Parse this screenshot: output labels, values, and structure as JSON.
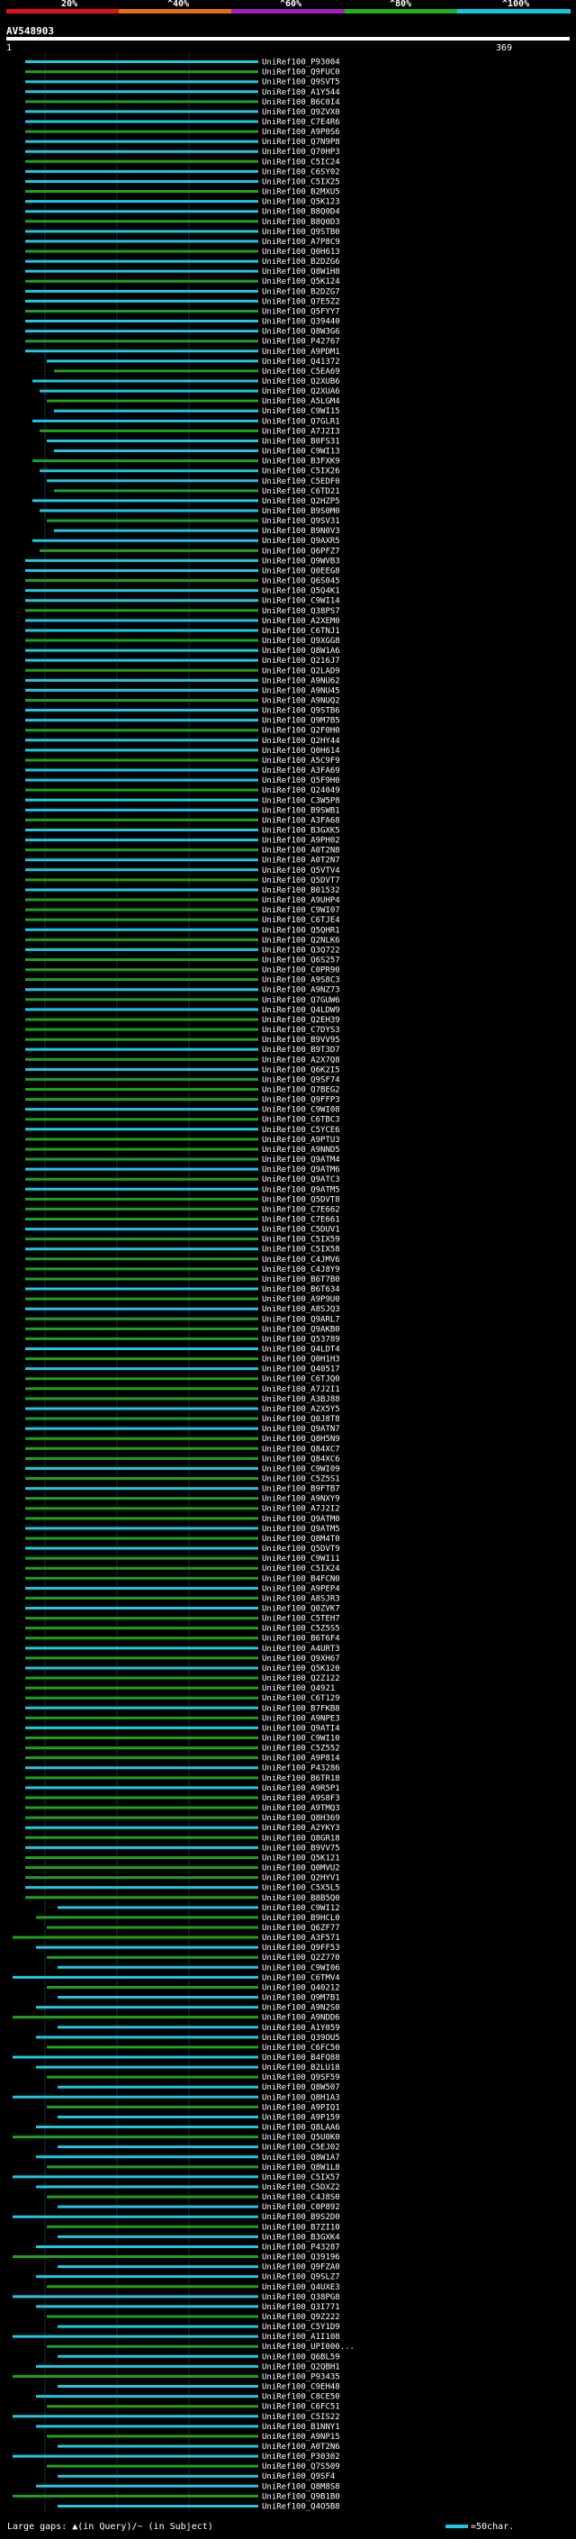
{
  "header": {
    "percent_labels": [
      "20%",
      "^40%",
      "^60%",
      "^80%",
      "^100%"
    ],
    "identity_colors": [
      "#e01010",
      "#e07010",
      "#a020c0",
      "#20b020",
      "#10c8e0"
    ],
    "query_name": "AV548903",
    "axis_start": "1",
    "axis_end": "369"
  },
  "chart_data": {
    "type": "alignment-hits",
    "query_length": 369,
    "hits": [
      "UniRef100_P93004",
      "UniRef100_Q9FUC0",
      "UniRef100_Q9SVT5",
      "UniRef100_A1Y544",
      "UniRef100_B6C0I4",
      "UniRef100_Q9ZVX0",
      "UniRef100_C7E4R6",
      "UniRef100_A9P0S6",
      "UniRef100_Q7N9P8",
      "UniRef100_Q70HP3",
      "UniRef100_C5IC24",
      "UniRef100_C6SY02",
      "UniRef100_C5IX25",
      "UniRef100_B2MXU5",
      "UniRef100_Q5K123",
      "UniRef100_B8Q0D4",
      "UniRef100_B8Q0D3",
      "UniRef100_Q9STB0",
      "UniRef100_A7P8C9",
      "UniRef100_Q0H613",
      "UniRef100_B2DZG6",
      "UniRef100_Q8W1H8",
      "UniRef100_Q5K124",
      "UniRef100_B2DZG7",
      "UniRef100_Q7E5Z2",
      "UniRef100_Q5FYY7",
      "UniRef100_Q39440",
      "UniRef100_Q8W3G6",
      "UniRef100_P42767",
      "UniRef100_A9PDM1",
      "UniRef100_Q41372",
      "UniRef100_C5EA69",
      "UniRef100_Q2XUB6",
      "UniRef100_Q2XUA6",
      "UniRef100_A5LGM4",
      "UniRef100_C9WI15",
      "UniRef100_Q7GLR1",
      "UniRef100_A7J2I3",
      "UniRef100_B0FS31",
      "UniRef100_C9WI13",
      "UniRef100_B3FXK9",
      "UniRef100_C5IX26",
      "UniRef100_C5EDF0",
      "UniRef100_C6TD21",
      "UniRef100_Q2HZP5",
      "UniRef100_B9S0M0",
      "UniRef100_Q9SV31",
      "UniRef100_B9N0V3",
      "UniRef100_Q9AXR5",
      "UniRef100_Q6PFZ7",
      "UniRef100_Q9WVB3",
      "UniRef100_Q0EEG8",
      "UniRef100_Q6S045",
      "UniRef100_Q5Q4K1",
      "UniRef100_C9WI14",
      "UniRef100_Q38PS7",
      "UniRef100_A2XEM0",
      "UniRef100_C6TNJ1",
      "UniRef100_Q9XGG8",
      "UniRef100_Q8W1A6",
      "UniRef100_Q216J7",
      "UniRef100_Q2LAD9",
      "UniRef100_A9NU62",
      "UniRef100_A9NU45",
      "UniRef100_A9NUQ2",
      "UniRef100_Q9STB6",
      "UniRef100_Q9M7B5",
      "UniRef100_Q2F0H0",
      "UniRef100_Q2HY44",
      "UniRef100_Q0H614",
      "UniRef100_A5C9F9",
      "UniRef100_A3FA69",
      "UniRef100_Q5F9H0",
      "UniRef100_Q24049",
      "UniRef100_C3W5P8",
      "UniRef100_B9SWB1",
      "UniRef100_A3FA68",
      "UniRef100_B3GXK5",
      "UniRef100_A9PH02",
      "UniRef100_A0T2N8",
      "UniRef100_A0T2N7",
      "UniRef100_Q5VTV4",
      "UniRef100_Q5DVT7",
      "UniRef100_B01532",
      "UniRef100_A9UHP4",
      "UniRef100_C9WI07",
      "UniRef100_C6TJE4",
      "UniRef100_Q5QHR1",
      "UniRef100_Q2NLK6",
      "UniRef100_Q3Q722",
      "UniRef100_Q6S257",
      "UniRef100_C0PR90",
      "UniRef100_A9S8C3",
      "UniRef100_A9NZ73",
      "UniRef100_Q7GUW6",
      "UniRef100_Q4LDW9",
      "UniRef100_Q2EH39",
      "UniRef100_C7DYS3",
      "UniRef100_B9VV95",
      "UniRef100_B9T3D7",
      "UniRef100_A2X7Q8",
      "UniRef100_Q6K2I5",
      "UniRef100_Q9SF74",
      "UniRef100_Q7BEG2",
      "UniRef100_Q9FFP3",
      "UniRef100_C9WI08",
      "UniRef100_C6TBC3",
      "UniRef100_C5YCE6",
      "UniRef100_A9PTU3",
      "UniRef100_A9NND5",
      "UniRef100_Q9ATM4",
      "UniRef100_Q9ATM6",
      "UniRef100_Q9ATC3",
      "UniRef100_Q9ATM5",
      "UniRef100_Q5DVT8",
      "UniRef100_C7E662",
      "UniRef100_C7E661",
      "UniRef100_C5DUV1",
      "UniRef100_C5IX59",
      "UniRef100_C5IX58",
      "UniRef100_C4JMV6",
      "UniRef100_C4J8Y9",
      "UniRef100_B6T7B0",
      "UniRef100_B6T634",
      "UniRef100_A9P9U0",
      "UniRef100_A8SJQ3",
      "UniRef100_Q9ARL7",
      "UniRef100_Q9AKB0",
      "UniRef100_Q53789",
      "UniRef100_Q4LDT4",
      "UniRef100_Q0H1H3",
      "UniRef100_Q40517",
      "UniRef100_C6TJQ0",
      "UniRef100_A7J2I1",
      "UniRef100_A3BJ88",
      "UniRef100_A2X5Y5",
      "UniRef100_Q0J8T8",
      "UniRef100_Q9ATN7",
      "UniRef100_Q8H5N9",
      "UniRef100_Q84XC7",
      "UniRef100_Q84XC6",
      "UniRef100_C9WI09",
      "UniRef100_C5Z5S1",
      "UniRef100_B9FTB7",
      "UniRef100_A9NXY9",
      "UniRef100_A7J2I2",
      "UniRef100_Q9ATM0",
      "UniRef100_Q9ATM5",
      "UniRef100_Q8M4T0",
      "UniRef100_Q5DVT9",
      "UniRef100_C9WI11",
      "UniRef100_C5IX24",
      "UniRef100_B4FCN0",
      "UniRef100_A9PEP4",
      "UniRef100_A8SJR3",
      "UniRef100_Q0ZVK7",
      "UniRef100_C5TEH7",
      "UniRef100_C5Z5S5",
      "UniRef100_B6T6F4",
      "UniRef100_A4URT3",
      "UniRef100_Q9XH67",
      "UniRef100_Q5K120",
      "UniRef100_Q2Z122",
      "UniRef100_Q4921",
      "UniRef100_C6T129",
      "UniRef100_B7FKB8",
      "UniRef100_A9NPE3",
      "UniRef100_Q9ATI4",
      "UniRef100_C9WI10",
      "UniRef100_C5Z552",
      "UniRef100_A9P814",
      "UniRef100_P43286",
      "UniRef100_B6TR18",
      "UniRef100_A9R5P1",
      "UniRef100_A9S8F3",
      "UniRef100_A9TMQ3",
      "UniRef100_Q8H369",
      "UniRef100_A2YKY3",
      "UniRef100_Q8GR18",
      "UniRef100_B9VV75",
      "UniRef100_Q5K121",
      "UniRef100_Q0MVU2",
      "UniRef100_Q2HYV1",
      "UniRef100_C5X5L5",
      "UniRef100_B8B5Q0",
      "UniRef100_C9WI12",
      "UniRef100_B9HCL0",
      "UniRef100_Q6ZF77",
      "UniRef100_A3F571",
      "UniRef100_Q9FF53",
      "UniRef100_Q2Z770",
      "UniRef100_C9WI06",
      "UniRef100_C6TMV4",
      "UniRef100_Q40212",
      "UniRef100_Q9M7B1",
      "UniRef100_A9N2S0",
      "UniRef100_A9NDD6",
      "UniRef100_A1Y059",
      "UniRef100_Q39OU5",
      "UniRef100_C6FC50",
      "UniRef100_B4FQ88",
      "UniRef100_B2LU18",
      "UniRef100_Q9SF59",
      "UniRef100_Q8W507",
      "UniRef100_Q8H1A3",
      "UniRef100_A9PIQ1",
      "UniRef100_A9P159",
      "UniRef100_Q8LAA6",
      "UniRef100_Q5U0K0",
      "UniRef100_C5EJ02",
      "UniRef100_Q8W1A7",
      "UniRef100_Q8W1L8",
      "UniRef100_C5IX57",
      "UniRef100_C5DXZ2",
      "UniRef100_C4J8S0",
      "UniRef100_C0P892",
      "UniRef100_B9S2D0",
      "UniRef100_B7ZI10",
      "UniRef100_B3GXK4",
      "UniRef100_P43287",
      "UniRef100_Q39196",
      "UniRef100_Q9FZA0",
      "UniRef100_Q9SLZ7",
      "UniRef100_Q4UXE3",
      "UniRef100_Q38PG8",
      "UniRef100_Q3I771",
      "UniRef100_Q9Z222",
      "UniRef100_C5Y1D9",
      "UniRef100_A1I108",
      "UniRef100_UPI000...",
      "UniRef100_Q6BL59",
      "UniRef100_Q2QBH1",
      "UniRef100_P93435",
      "UniRef100_C9EH48",
      "UniRef100_C8CE50",
      "UniRef100_C6FC51",
      "UniRef100_C5IS22",
      "UniRef100_B1NNY1",
      "UniRef100_A9NP15",
      "UniRef100_A0T2N6",
      "UniRef100_P30302",
      "UniRef100_Q7S509",
      "UniRef100_Q9SF4",
      "UniRef100_Q8M8S8",
      "UniRef100_Q9B1B0",
      "UniRef100_Q4O5B8"
    ]
  },
  "footer": {
    "gaps_text": "Large gaps: ▲(in Query)/~ (in Subject)",
    "scale_text": "=50char."
  }
}
